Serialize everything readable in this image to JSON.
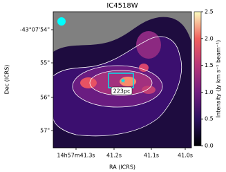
{
  "chart_data": {
    "type": "image",
    "title": "IC4518W",
    "x_label": "RA (ICRS)",
    "y_label": "Dec (ICRS)",
    "x_tick_labels": [
      "14h57m41.3s",
      "41.2s",
      "41.1s",
      "41.0s"
    ],
    "y_tick_labels": [
      "-43°07'54\"",
      "55\"",
      "56\"",
      "57\""
    ],
    "annotation": "223pc",
    "colorbar": {
      "label": "Intensity (Jy km s⁻¹ beam⁻¹)",
      "ylim": [
        0,
        2.5
      ],
      "yticks": [
        {
          "value": 0,
          "label": "0.0"
        },
        {
          "value": 0.5,
          "label": "0.5"
        },
        {
          "value": 1,
          "label": "1.0"
        },
        {
          "value": 1.5,
          "label": "1.5"
        },
        {
          "value": 2,
          "label": "2.0"
        },
        {
          "value": 2.5,
          "label": "2.5"
        }
      ]
    }
  }
}
